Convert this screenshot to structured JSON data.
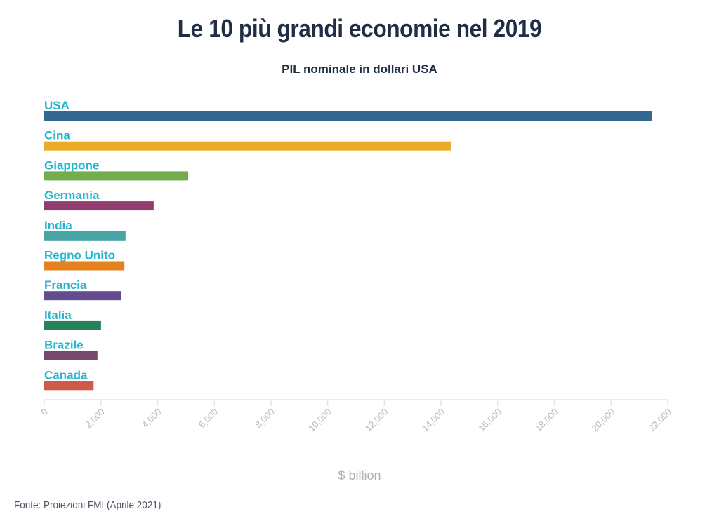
{
  "chart_data": {
    "type": "bar",
    "orientation": "horizontal",
    "title": "Le 10 più grandi economie nel 2019",
    "subtitle": "PIL nominale in dollari USA",
    "xlabel": "$ billion",
    "ylabel": "",
    "source": "Fonte: Proiezioni FMI (Aprile 2021)",
    "categories": [
      "USA",
      "Cina",
      "Giappone",
      "Germania",
      "India",
      "Regno Unito",
      "Francia",
      "Italia",
      "Brazile",
      "Canada"
    ],
    "values": [
      21433,
      14343,
      5082,
      3861,
      2869,
      2829,
      2716,
      2004,
      1878,
      1742
    ],
    "colors": [
      "#33688f",
      "#eaac27",
      "#73ad4f",
      "#923d6d",
      "#49a5a5",
      "#e3821f",
      "#634b8f",
      "#258259",
      "#744a6c",
      "#cf5a4a"
    ],
    "xlim": [
      0,
      22000
    ],
    "x_ticks": [
      0,
      2000,
      4000,
      6000,
      8000,
      10000,
      12000,
      14000,
      16000,
      18000,
      20000,
      22000
    ],
    "x_tick_labels": [
      "0",
      "2,000",
      "4,000",
      "6,000",
      "8,000",
      "10,000",
      "12,000",
      "14,000",
      "16,000",
      "18,000",
      "20,000",
      "22,000"
    ],
    "grid": false,
    "legend": "none"
  }
}
